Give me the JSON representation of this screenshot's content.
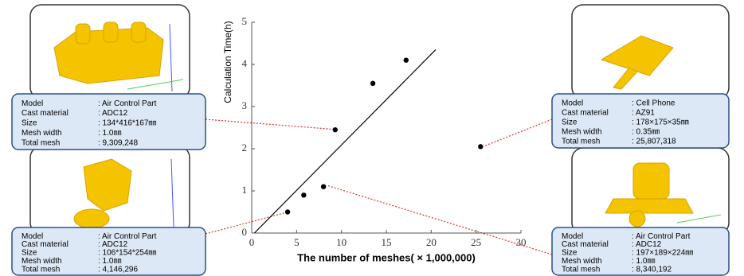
{
  "chart_data": {
    "type": "scatter",
    "xlabel": "The number of meshes( × 1,000,000)",
    "ylabel": "Calculation Time(h)",
    "x": [
      4,
      5.8,
      8,
      9.3,
      13.5,
      17.2,
      25.5
    ],
    "y": [
      0.5,
      0.9,
      1.1,
      2.45,
      3.55,
      4.1,
      2.05
    ],
    "color": "#000000",
    "trend_line": {
      "x": [
        0.3,
        20.5
      ],
      "y": [
        0,
        4.35
      ]
    },
    "xlim": [
      0,
      30
    ],
    "ylim": [
      0,
      5
    ],
    "xticks": [
      0,
      5,
      10,
      15,
      20,
      25,
      30
    ],
    "yticks": [
      0,
      1,
      2,
      3,
      4,
      5
    ]
  },
  "panels": [
    {
      "rows": [
        [
          "Model",
          ": Air Control Part"
        ],
        [
          "Cast material",
          ": ADC12"
        ],
        [
          "Size",
          ": 134*416*167㎜"
        ],
        [
          "Mesh width",
          ": 1.0㎜"
        ],
        [
          "Total mesh",
          ": 9,309,248"
        ]
      ]
    },
    {
      "rows": [
        [
          "Model",
          ": Air Control Part"
        ],
        [
          "Cast material",
          ": ADC12"
        ],
        [
          "Size",
          ": 106*154*254㎜"
        ],
        [
          "Mesh width",
          ": 1.0㎜"
        ],
        [
          "Total mesh",
          ": 4,146,296"
        ]
      ]
    },
    {
      "rows": [
        [
          "Model",
          ": Cell Phone"
        ],
        [
          "Cast material",
          ": AZ91"
        ],
        [
          "Size",
          ": 178×175×35㎜"
        ],
        [
          "Mesh width",
          ": 0.35㎜"
        ],
        [
          "Total mesh",
          ": 25,807,318"
        ]
      ]
    },
    {
      "rows": [
        [
          "Model",
          ": Air Control Part"
        ],
        [
          "Cast material",
          ": ADC12"
        ],
        [
          "Size",
          ": 197×189×224㎜"
        ],
        [
          "Mesh width",
          ": 1.0㎜"
        ],
        [
          "Total mesh",
          ": 8,340,192"
        ]
      ]
    }
  ]
}
